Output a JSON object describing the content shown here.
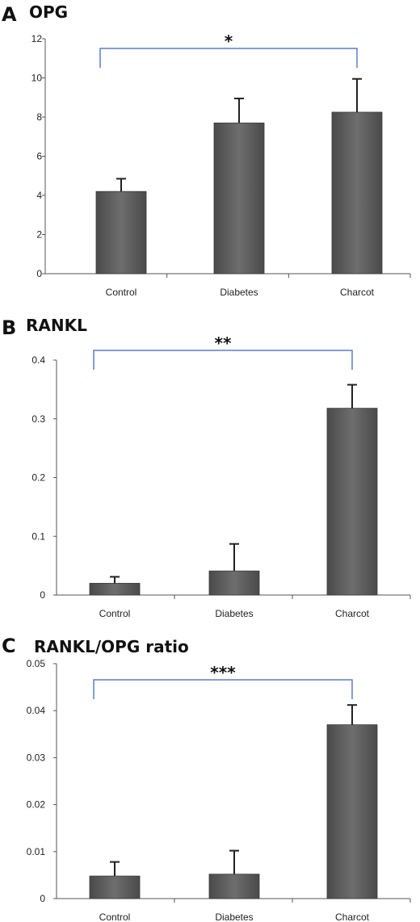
{
  "chart_data": [
    {
      "type": "bar",
      "panel": "A",
      "title": "OPG",
      "categories": [
        "Control",
        "Diabetes",
        "Charcot"
      ],
      "values": [
        4.2,
        7.7,
        8.25
      ],
      "error": [
        0.65,
        1.25,
        1.7
      ],
      "ylim": [
        0,
        12
      ],
      "yticks": [
        "0",
        "2",
        "4",
        "6",
        "8",
        "10",
        "12"
      ],
      "significance": {
        "from": "Control",
        "to": "Charcot",
        "label": "*"
      },
      "bar_color": "#5e5e5e",
      "bracket_color": "#5b7fc7"
    },
    {
      "type": "bar",
      "panel": "B",
      "title": "RANKL",
      "categories": [
        "Control",
        "Diabetes",
        "Charcot"
      ],
      "values": [
        0.02,
        0.041,
        0.318
      ],
      "error": [
        0.011,
        0.046,
        0.04
      ],
      "ylim": [
        0,
        0.4
      ],
      "yticks": [
        "0",
        "0.1",
        "0.2",
        "0.3",
        "0.4"
      ],
      "significance": {
        "from": "Control",
        "to": "Charcot",
        "label": "**"
      },
      "bar_color": "#5e5e5e",
      "bracket_color": "#5b7fc7"
    },
    {
      "type": "bar",
      "panel": "C",
      "title": "RANKL/OPG ratio",
      "categories": [
        "Control",
        "Diabetes",
        "Charcot"
      ],
      "values": [
        0.0048,
        0.0052,
        0.037
      ],
      "error": [
        0.003,
        0.005,
        0.0042
      ],
      "ylim": [
        0,
        0.05
      ],
      "yticks": [
        "0",
        "0.01",
        "0.02",
        "0.03",
        "0.04",
        "0.05"
      ],
      "significance": {
        "from": "Control",
        "to": "Charcot",
        "label": "***"
      },
      "bar_color": "#5e5e5e",
      "bracket_color": "#5b7fc7"
    }
  ]
}
